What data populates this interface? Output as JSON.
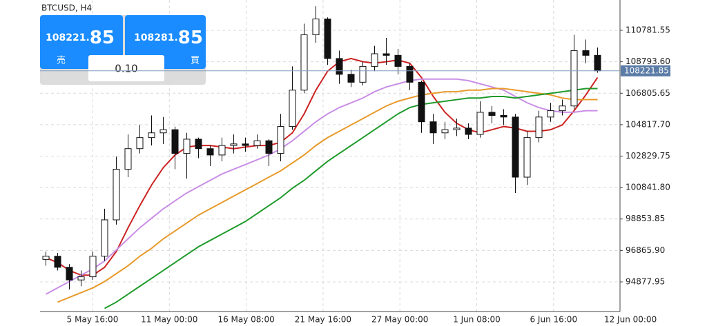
{
  "chart_data": {
    "type": "candlestick",
    "title": "BTCUSD, H4",
    "x_labels": [
      "5 May 16:00",
      "11 May 00:00",
      "16 May 08:00",
      "21 May 16:00",
      "27 May 00:00",
      "1 Jun 08:00",
      "6 Jun 16:00",
      "12 Jun 00:00"
    ],
    "open": [
      96300,
      96500,
      95800,
      95000,
      95200,
      96500,
      98800,
      102000,
      103300,
      104000,
      104300,
      104500,
      103000,
      103900,
      103300,
      102900,
      103500,
      103600,
      103500,
      103800,
      103000,
      104700,
      107000,
      110500,
      111500,
      109000,
      108000,
      107500,
      108500,
      109300,
      109200,
      108500,
      107500,
      105000,
      104300,
      104500,
      104600,
      104200,
      105600,
      105400,
      105300,
      101500,
      104000,
      105300,
      105700,
      106000,
      109500,
      109200
    ],
    "high": [
      96800,
      96700,
      96000,
      95600,
      96800,
      99500,
      102800,
      104200,
      104800,
      105400,
      105300,
      104700,
      104300,
      104000,
      103500,
      104000,
      104200,
      104000,
      104200,
      103900,
      105500,
      108500,
      111200,
      112300,
      111600,
      109500,
      108300,
      108800,
      109800,
      110300,
      109600,
      108700,
      107600,
      105500,
      105000,
      105200,
      104900,
      106300,
      106000,
      105800,
      105500,
      104400,
      105700,
      106200,
      106400,
      110500,
      110200,
      109700
    ],
    "low": [
      95900,
      95600,
      94400,
      94600,
      95000,
      96200,
      98500,
      101500,
      103000,
      103500,
      103600,
      102000,
      101400,
      102700,
      102200,
      102500,
      103000,
      103100,
      103300,
      102200,
      102500,
      104500,
      106800,
      110000,
      108600,
      107400,
      107200,
      107300,
      108200,
      108600,
      108000,
      107000,
      104300,
      103600,
      103900,
      104100,
      103900,
      104000,
      104900,
      104800,
      100500,
      101000,
      103700,
      105000,
      105400,
      105800,
      108700,
      108100
    ],
    "close": [
      96500,
      95800,
      95000,
      95200,
      96500,
      98800,
      102000,
      103300,
      104000,
      104300,
      104500,
      103000,
      103900,
      103300,
      102900,
      103500,
      103600,
      103500,
      103800,
      103000,
      104700,
      107000,
      110500,
      111500,
      109000,
      108000,
      107500,
      108500,
      109300,
      109200,
      108500,
      107500,
      105000,
      104300,
      104500,
      104600,
      104200,
      105600,
      105400,
      105300,
      101500,
      104000,
      105300,
      105700,
      106000,
      109500,
      109200,
      108221.85
    ],
    "series": [
      {
        "color": "#cc2222",
        "values": [
          96400,
          96100,
          95600,
          95300,
          95300,
          95800,
          96800,
          98300,
          99700,
          101000,
          102100,
          102900,
          103400,
          103500,
          103500,
          103400,
          103300,
          103400,
          103500,
          103500,
          103700,
          104300,
          105500,
          107000,
          108200,
          108800,
          109000,
          108800,
          108700,
          108800,
          108900,
          108700,
          107800,
          106600,
          105600,
          104900,
          104500,
          104300,
          104500,
          104700,
          104600,
          104400,
          104400,
          104500,
          104800,
          105700,
          106700,
          107800
        ]
      },
      {
        "color": "#c98ee6",
        "values": [
          94100,
          94500,
          94900,
          95300,
          95700,
          96200,
          96900,
          97600,
          98300,
          98900,
          99500,
          100000,
          100500,
          100900,
          101300,
          101700,
          102000,
          102300,
          102600,
          102900,
          103300,
          103800,
          104400,
          105000,
          105500,
          105900,
          106200,
          106500,
          106900,
          107200,
          107400,
          107600,
          107700,
          107700,
          107700,
          107700,
          107600,
          107400,
          107200,
          107000,
          106600,
          106200,
          105900,
          105700,
          105600,
          105600,
          105700,
          105700
        ]
      },
      {
        "color": "#e89a2a",
        "values": [
          null,
          93600,
          93900,
          94200,
          94500,
          94900,
          95400,
          95900,
          96500,
          97000,
          97600,
          98100,
          98600,
          99100,
          99500,
          99900,
          100300,
          100700,
          101100,
          101500,
          101900,
          102400,
          102900,
          103500,
          104000,
          104400,
          104800,
          105200,
          105600,
          106000,
          106300,
          106500,
          106700,
          106800,
          106900,
          106900,
          107000,
          107000,
          107100,
          107100,
          107000,
          106900,
          106800,
          106700,
          106500,
          106400,
          106400,
          106400
        ]
      },
      {
        "color": "#1e9a2a",
        "values": [
          null,
          null,
          null,
          null,
          null,
          93200,
          93600,
          94100,
          94600,
          95100,
          95600,
          96100,
          96600,
          97100,
          97500,
          97900,
          98300,
          98700,
          99200,
          99700,
          100200,
          100800,
          101300,
          101900,
          102500,
          103000,
          103500,
          104000,
          104500,
          105000,
          105500,
          105900,
          106100,
          106200,
          106300,
          106400,
          106500,
          106500,
          106600,
          106600,
          106500,
          106600,
          106700,
          106800,
          106900,
          107000,
          107100,
          107100
        ]
      }
    ],
    "ylim": [
      93004,
      112699
    ],
    "yticks": [
      110781.55,
      {
        "value": 108793.6,
        "label": "108793.60"
      },
      106805.65,
      {
        "value": 104817.7,
        "label": "104817.70"
      },
      102829.75,
      {
        "value": 100841.8,
        "label": "100841.80"
      },
      98853.85,
      {
        "value": 96865.9,
        "label": "96865.90"
      },
      94877.95
    ],
    "grid": true
  },
  "trade_panel": {
    "sell_price": "108221.",
    "sell_price_big": "85",
    "sell_label": "売",
    "buy_price": "108281.",
    "buy_price_big": "85",
    "buy_label": "買",
    "volume": "0.10"
  }
}
